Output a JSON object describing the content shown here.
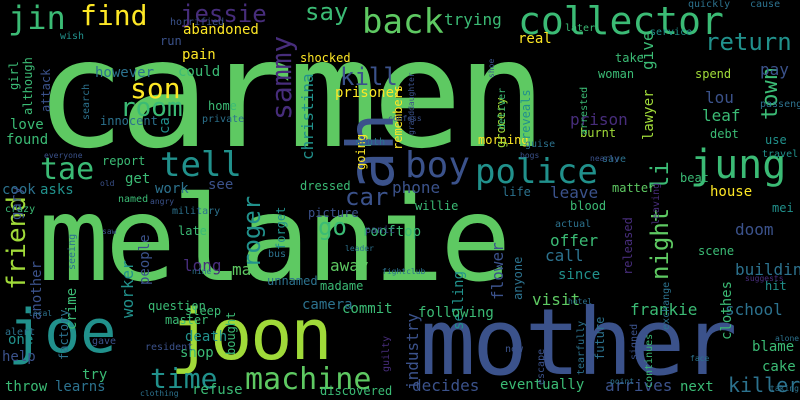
{
  "palette": {
    "background": "#000000",
    "light_green": "#5ec962",
    "green": "#3bbb75",
    "teal": "#21918c",
    "blue": "#2c728e",
    "indigo": "#3b528b",
    "purple": "#472d7b",
    "dark_purple": "#440154",
    "yellow": "#fde725",
    "lime": "#a0da39"
  },
  "words": [
    {
      "text": "carmen",
      "color": "light_green"
    },
    {
      "text": "melanie",
      "color": "light_green"
    },
    {
      "text": "mother",
      "color": "indigo"
    },
    {
      "text": "joe",
      "color": "teal"
    },
    {
      "text": "joon",
      "color": "lime"
    },
    {
      "text": "ah",
      "color": "indigo"
    },
    {
      "text": "collector",
      "color": "green"
    },
    {
      "text": "jung",
      "color": "green"
    },
    {
      "text": "police",
      "color": "teal"
    },
    {
      "text": "boy",
      "color": "indigo"
    },
    {
      "text": "back",
      "color": "light_green"
    },
    {
      "text": "tell",
      "color": "teal"
    },
    {
      "text": "tae",
      "color": "green"
    },
    {
      "text": "machine",
      "color": "light_green"
    },
    {
      "text": "time",
      "color": "teal"
    },
    {
      "text": "jin",
      "color": "green"
    },
    {
      "text": "find",
      "color": "yellow"
    },
    {
      "text": "jessie",
      "color": "purple"
    },
    {
      "text": "sammy",
      "color": "purple"
    },
    {
      "text": "return",
      "color": "teal"
    },
    {
      "text": "son",
      "color": "yellow"
    },
    {
      "text": "room",
      "color": "green"
    },
    {
      "text": "town",
      "color": "green"
    },
    {
      "text": "friend",
      "color": "lime"
    },
    {
      "text": "roger",
      "color": "teal"
    },
    {
      "text": "car",
      "color": "indigo"
    },
    {
      "text": "go",
      "color": "green"
    },
    {
      "text": "kill",
      "color": "indigo"
    },
    {
      "text": "say",
      "color": "green"
    },
    {
      "text": "trying",
      "color": "green"
    },
    {
      "text": "night",
      "color": "light_green"
    },
    {
      "text": "li",
      "color": "green"
    },
    {
      "text": "christina",
      "color": "teal"
    },
    {
      "text": "killer",
      "color": "blue"
    },
    {
      "text": "school",
      "color": "blue"
    },
    {
      "text": "frankie",
      "color": "green"
    },
    {
      "text": "decides",
      "color": "indigo"
    },
    {
      "text": "arrives",
      "color": "indigo"
    },
    {
      "text": "eventually",
      "color": "green"
    },
    {
      "text": "next",
      "color": "green"
    },
    {
      "text": "industry",
      "color": "indigo"
    },
    {
      "text": "flower",
      "color": "indigo"
    },
    {
      "text": "visit",
      "color": "light_green"
    },
    {
      "text": "building",
      "color": "blue"
    },
    {
      "text": "doom",
      "color": "indigo"
    },
    {
      "text": "prison",
      "color": "purple"
    },
    {
      "text": "lou",
      "color": "indigo"
    },
    {
      "text": "leaf",
      "color": "green"
    },
    {
      "text": "give",
      "color": "green"
    },
    {
      "text": "pay",
      "color": "indigo"
    },
    {
      "text": "offer",
      "color": "green"
    },
    {
      "text": "call",
      "color": "blue"
    },
    {
      "text": "leave",
      "color": "indigo"
    },
    {
      "text": "phone",
      "color": "indigo"
    },
    {
      "text": "worker",
      "color": "teal"
    },
    {
      "text": "long",
      "color": "purple"
    },
    {
      "text": "man",
      "color": "light_green"
    },
    {
      "text": "shop",
      "color": "green"
    },
    {
      "text": "death",
      "color": "teal"
    },
    {
      "text": "try",
      "color": "green"
    },
    {
      "text": "get",
      "color": "green"
    },
    {
      "text": "work",
      "color": "blue"
    },
    {
      "text": "see",
      "color": "indigo"
    },
    {
      "text": "found",
      "color": "green"
    },
    {
      "text": "love",
      "color": "green"
    },
    {
      "text": "cook",
      "color": "blue"
    },
    {
      "text": "asks",
      "color": "teal"
    },
    {
      "text": "crime",
      "color": "green"
    },
    {
      "text": "another",
      "color": "indigo"
    },
    {
      "text": "one",
      "color": "teal"
    },
    {
      "text": "help",
      "color": "indigo"
    },
    {
      "text": "learns",
      "color": "blue"
    },
    {
      "text": "throw",
      "color": "green"
    },
    {
      "text": "refuse",
      "color": "green"
    },
    {
      "text": "discovered",
      "color": "green"
    },
    {
      "text": "could",
      "color": "green"
    },
    {
      "text": "however",
      "color": "blue"
    },
    {
      "text": "abandoned",
      "color": "yellow"
    },
    {
      "text": "shocked",
      "color": "yellow"
    },
    {
      "text": "real",
      "color": "yellow"
    },
    {
      "text": "prisoner",
      "color": "yellow"
    },
    {
      "text": "woman",
      "color": "green"
    },
    {
      "text": "spend",
      "color": "lime"
    },
    {
      "text": "take",
      "color": "green"
    },
    {
      "text": "debt",
      "color": "green"
    },
    {
      "text": "lawyer",
      "color": "lime"
    },
    {
      "text": "burnt",
      "color": "lime"
    },
    {
      "text": "morning",
      "color": "yellow"
    },
    {
      "text": "grocery",
      "color": "lime"
    },
    {
      "text": "reveals",
      "color": "teal"
    },
    {
      "text": "use",
      "color": "teal"
    },
    {
      "text": "mei",
      "color": "teal"
    },
    {
      "text": "house",
      "color": "yellow"
    },
    {
      "text": "scene",
      "color": "green"
    },
    {
      "text": "hit",
      "color": "teal"
    },
    {
      "text": "blame",
      "color": "green"
    },
    {
      "text": "clothes",
      "color": "green"
    },
    {
      "text": "cake",
      "color": "green"
    },
    {
      "text": "since",
      "color": "teal"
    },
    {
      "text": "selling",
      "color": "teal"
    },
    {
      "text": "anyone",
      "color": "blue"
    },
    {
      "text": "released",
      "color": "purple"
    },
    {
      "text": "blood",
      "color": "green"
    },
    {
      "text": "matter",
      "color": "light_green"
    },
    {
      "text": "life",
      "color": "blue"
    },
    {
      "text": "beat",
      "color": "green"
    },
    {
      "text": "rooftop",
      "color": "green"
    },
    {
      "text": "picture",
      "color": "indigo"
    },
    {
      "text": "dressed",
      "color": "green"
    },
    {
      "text": "away",
      "color": "light_green"
    },
    {
      "text": "commit",
      "color": "green"
    },
    {
      "text": "following",
      "color": "green"
    },
    {
      "text": "future",
      "color": "blue"
    },
    {
      "text": "camera",
      "color": "blue"
    },
    {
      "text": "unnamed",
      "color": "blue"
    },
    {
      "text": "madame",
      "color": "green"
    },
    {
      "text": "question",
      "color": "green"
    },
    {
      "text": "sleep",
      "color": "green"
    },
    {
      "text": "master",
      "color": "green"
    },
    {
      "text": "bought",
      "color": "green"
    },
    {
      "text": "late",
      "color": "green"
    },
    {
      "text": "people",
      "color": "indigo"
    },
    {
      "text": "report",
      "color": "green"
    },
    {
      "text": "home",
      "color": "green"
    },
    {
      "text": "innocent",
      "color": "blue"
    },
    {
      "text": "private",
      "color": "blue"
    },
    {
      "text": "pain",
      "color": "yellow"
    },
    {
      "text": "run",
      "color": "indigo"
    },
    {
      "text": "attack",
      "color": "indigo"
    },
    {
      "text": "wish",
      "color": "teal"
    },
    {
      "text": "although",
      "color": "green"
    },
    {
      "text": "girl",
      "color": "green"
    },
    {
      "text": "going",
      "color": "yellow"
    },
    {
      "text": "remembers",
      "color": "yellow"
    },
    {
      "text": "south",
      "color": "blue"
    },
    {
      "text": "guise",
      "color": "blue"
    },
    {
      "text": "willie",
      "color": "green"
    },
    {
      "text": "forget",
      "color": "teal"
    },
    {
      "text": "bus",
      "color": "blue"
    },
    {
      "text": "service",
      "color": "teal"
    },
    {
      "text": "cause",
      "color": "blue"
    },
    {
      "text": "quickly",
      "color": "blue"
    },
    {
      "text": "later",
      "color": "green"
    },
    {
      "text": "arrested",
      "color": "green"
    },
    {
      "text": "deliver",
      "color": "green"
    },
    {
      "text": "save",
      "color": "blue"
    },
    {
      "text": "escape",
      "color": "indigo"
    },
    {
      "text": "new",
      "color": "indigo"
    },
    {
      "text": "guilty",
      "color": "purple"
    },
    {
      "text": "signed",
      "color": "indigo"
    },
    {
      "text": "continues",
      "color": "green"
    },
    {
      "text": "exchange",
      "color": "blue"
    },
    {
      "text": "passenger",
      "color": "blue"
    },
    {
      "text": "travel",
      "color": "teal"
    },
    {
      "text": "alert",
      "color": "blue"
    },
    {
      "text": "factory",
      "color": "blue"
    },
    {
      "text": "named",
      "color": "green"
    },
    {
      "text": "military",
      "color": "blue"
    },
    {
      "text": "crazy",
      "color": "green"
    },
    {
      "text": "search",
      "color": "blue"
    },
    {
      "text": "horrified",
      "color": "indigo"
    },
    {
      "text": "panic",
      "color": "indigo"
    },
    {
      "text": "leader",
      "color": "blue"
    },
    {
      "text": "actual",
      "color": "blue"
    },
    {
      "text": "seeing",
      "color": "blue"
    },
    {
      "text": "gave",
      "color": "indigo"
    },
    {
      "text": "resident",
      "color": "indigo"
    },
    {
      "text": "clothing",
      "color": "blue"
    },
    {
      "text": "face",
      "color": "blue"
    },
    {
      "text": "taking",
      "color": "blue"
    },
    {
      "text": "alone",
      "color": "blue"
    },
    {
      "text": "everyone",
      "color": "indigo"
    },
    {
      "text": "nearly",
      "color": "indigo"
    },
    {
      "text": "bogs",
      "color": "indigo"
    },
    {
      "text": "confess",
      "color": "indigo"
    },
    {
      "text": "old",
      "color": "indigo"
    },
    {
      "text": "angry",
      "color": "indigo"
    },
    {
      "text": "leaving",
      "color": "purple"
    },
    {
      "text": "suggests",
      "color": "purple"
    },
    {
      "text": "fightclub",
      "color": "blue"
    },
    {
      "text": "tearfully",
      "color": "blue"
    },
    {
      "text": "point",
      "color": "blue"
    },
    {
      "text": "hotel",
      "color": "blue"
    },
    {
      "text": "nine",
      "color": "blue"
    },
    {
      "text": "local",
      "color": "blue"
    },
    {
      "text": "gary",
      "color": "indigo"
    },
    {
      "text": "saw",
      "color": "indigo"
    },
    {
      "text": "ca",
      "color": "teal"
    },
    {
      "text": "shoe",
      "color": "indigo"
    },
    {
      "text": "granddaughter",
      "color": "indigo"
    }
  ]
}
